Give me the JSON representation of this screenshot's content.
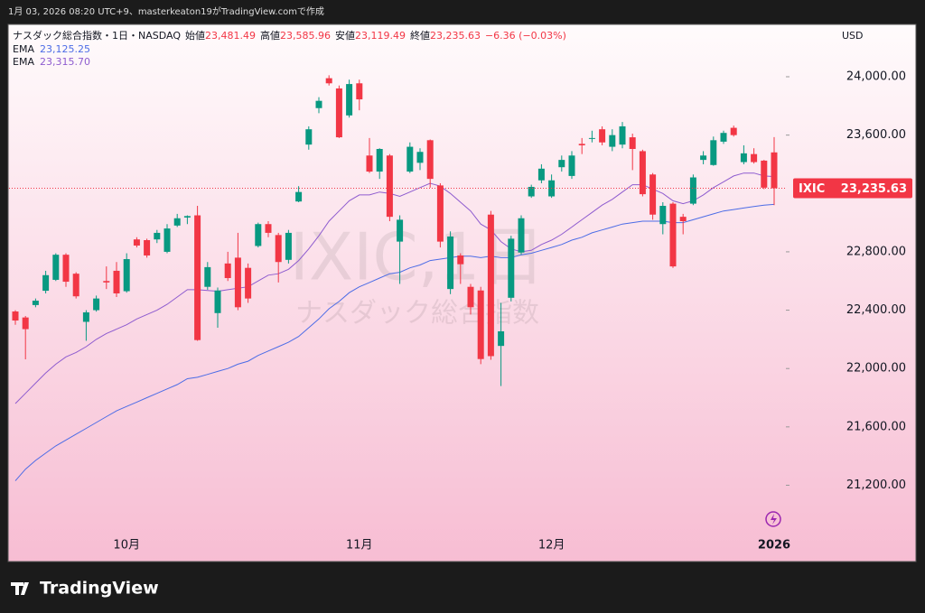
{
  "chart_data": {
    "type": "candlestick",
    "created": "1月 03, 2026 08:20 UTC+9、masterkeaton19がTradingView.comで作成",
    "title": "ナスダック総合指数・1日・NASDAQ",
    "ohlc_legend": [
      {
        "name": "始値",
        "label": "23,481.49"
      },
      {
        "name": "高値",
        "label": "23,585.96"
      },
      {
        "name": "安値",
        "label": "23,119.49"
      },
      {
        "name": "終値",
        "label": "23,235.63"
      }
    ],
    "change": "−6.36 (−0.03%)",
    "currency": "USD",
    "symbol": "IXIC",
    "price_label": "23,235.63",
    "watermark": [
      "IXIC,1日",
      "ナスダック総合指数"
    ],
    "brand": "TradingView",
    "up_color": "#089981",
    "down_color": "#f23645",
    "categories": [
      null,
      null,
      null,
      null,
      null,
      null,
      null,
      null,
      null,
      null,
      null,
      "10月",
      null,
      null,
      null,
      null,
      null,
      null,
      null,
      null,
      null,
      null,
      null,
      null,
      null,
      null,
      null,
      null,
      null,
      null,
      null,
      null,
      null,
      null,
      "11月",
      null,
      null,
      null,
      null,
      null,
      null,
      null,
      null,
      null,
      null,
      null,
      null,
      null,
      null,
      null,
      null,
      null,
      null,
      "12月",
      null,
      null,
      null,
      null,
      null,
      null,
      null,
      null,
      null,
      null,
      null,
      null,
      null,
      null,
      null,
      null,
      null,
      null,
      null,
      null,
      null,
      "2026"
    ],
    "open": [
      22391,
      22350,
      22435,
      22533,
      22608,
      22780,
      22650,
      22320,
      22400,
      22600,
      22670,
      22530,
      22885,
      22880,
      22885,
      22800,
      22980,
      23035,
      23050,
      22560,
      22380,
      22720,
      22760,
      22690,
      22840,
      22990,
      22915,
      22745,
      23145,
      23535,
      23785,
      23990,
      23920,
      23735,
      23955,
      23460,
      23350,
      23460,
      22870,
      23350,
      23410,
      23565,
      23255,
      22545,
      22775,
      22560,
      22535,
      23055,
      22155,
      22485,
      22795,
      23180,
      23290,
      23180,
      23380,
      23320,
      23540,
      23575,
      23640,
      23520,
      23535,
      23585,
      23490,
      23330,
      22990,
      23130,
      23040,
      23130,
      23430,
      23395,
      23555,
      23650,
      23415,
      23470,
      23425,
      23481.49
    ],
    "high": [
      22400,
      22360,
      22480,
      22670,
      22790,
      22790,
      22660,
      22400,
      22500,
      22700,
      22730,
      22790,
      22900,
      22890,
      22950,
      22990,
      23060,
      23050,
      23115,
      22730,
      22555,
      22800,
      22930,
      22720,
      23000,
      23010,
      22930,
      22950,
      23250,
      23660,
      23860,
      24010,
      23940,
      23980,
      23980,
      23580,
      23510,
      23470,
      23050,
      23550,
      23510,
      23570,
      23270,
      22940,
      22790,
      22580,
      22560,
      23080,
      22450,
      22910,
      23050,
      23260,
      23400,
      23330,
      23460,
      23490,
      23580,
      23630,
      23660,
      23640,
      23690,
      23610,
      23500,
      23340,
      23140,
      23140,
      23060,
      23330,
      23490,
      23590,
      23630,
      23665,
      23530,
      23510,
      23430,
      23585.96
    ],
    "low": [
      22300,
      22063,
      22420,
      22515,
      22600,
      22560,
      22480,
      22190,
      22390,
      22545,
      22490,
      22520,
      22830,
      22760,
      22860,
      22790,
      22970,
      22990,
      22190,
      22540,
      22280,
      22600,
      22400,
      22450,
      22830,
      22900,
      22590,
      22720,
      23140,
      23500,
      23750,
      23940,
      23580,
      23720,
      23770,
      23340,
      23300,
      23010,
      22580,
      23340,
      23360,
      23240,
      22830,
      22510,
      22580,
      22370,
      22030,
      22060,
      21880,
      22460,
      22780,
      23170,
      23270,
      23170,
      23350,
      23300,
      23470,
      23550,
      23530,
      23490,
      23510,
      23360,
      23180,
      23020,
      22920,
      22690,
      22920,
      23120,
      23400,
      23390,
      23540,
      23590,
      23400,
      23405,
      23230,
      23119.49
    ],
    "close": [
      22329,
      22270,
      22465,
      22640,
      22780,
      22595,
      22495,
      22385,
      22480,
      22590,
      22515,
      22750,
      22843,
      22775,
      22930,
      22960,
      23030,
      23045,
      22195,
      22695,
      22535,
      22620,
      22420,
      22480,
      22990,
      22930,
      22730,
      22930,
      23210,
      23640,
      23835,
      23955,
      23585,
      23950,
      23845,
      23350,
      23505,
      23040,
      23020,
      23520,
      23485,
      23300,
      22870,
      22905,
      22715,
      22420,
      22065,
      22085,
      22255,
      22890,
      23030,
      23245,
      23370,
      23290,
      23430,
      23460,
      23530,
      23580,
      23550,
      23600,
      23660,
      23505,
      23195,
      23055,
      23115,
      22700,
      23010,
      23310,
      23460,
      23565,
      23615,
      23600,
      23475,
      23415,
      23240,
      23235.63
    ],
    "series": [
      {
        "name": "EMA",
        "color": "#4c6ce6",
        "last_label": "23,125.25",
        "values": [
          21230,
          21310,
          21370,
          21420,
          21470,
          21510,
          21550,
          21590,
          21630,
          21670,
          21710,
          21740,
          21770,
          21800,
          21830,
          21860,
          21890,
          21930,
          21940,
          21960,
          21980,
          22000,
          22030,
          22050,
          22090,
          22120,
          22150,
          22180,
          22220,
          22280,
          22340,
          22410,
          22460,
          22520,
          22560,
          22590,
          22620,
          22650,
          22660,
          22690,
          22710,
          22740,
          22750,
          22760,
          22770,
          22770,
          22760,
          22770,
          22760,
          22760,
          22780,
          22790,
          22810,
          22830,
          22850,
          22880,
          22900,
          22930,
          22950,
          22970,
          22990,
          23000,
          23010,
          23010,
          23010,
          23000,
          23000,
          23020,
          23040,
          23060,
          23080,
          23090,
          23100,
          23110,
          23120,
          23125.25
        ]
      },
      {
        "name": "EMA",
        "color": "#8e5ccf",
        "last_label": "23,315.70",
        "values": [
          21760,
          21830,
          21900,
          21970,
          22030,
          22080,
          22110,
          22150,
          22200,
          22240,
          22270,
          22300,
          22340,
          22370,
          22400,
          22440,
          22490,
          22540,
          22540,
          22535,
          22530,
          22540,
          22550,
          22560,
          22600,
          22640,
          22650,
          22680,
          22740,
          22820,
          22910,
          23010,
          23080,
          23150,
          23190,
          23190,
          23210,
          23200,
          23180,
          23210,
          23240,
          23270,
          23250,
          23200,
          23140,
          23080,
          22990,
          22950,
          22870,
          22820,
          22800,
          22810,
          22850,
          22880,
          22920,
          22970,
          23020,
          23070,
          23120,
          23160,
          23210,
          23260,
          23260,
          23230,
          23200,
          23150,
          23130,
          23150,
          23190,
          23240,
          23280,
          23320,
          23340,
          23340,
          23320,
          23315.7
        ]
      }
    ],
    "ylim": [
      20875,
      24359
    ],
    "yticks": [
      {
        "value": 21200,
        "label": "21,200.00"
      },
      {
        "value": 21600,
        "label": "21,600.00"
      },
      {
        "value": 22000,
        "label": "22,000.00"
      },
      {
        "value": 22400,
        "label": "22,400.00"
      },
      {
        "value": 22800,
        "label": "22,800.00"
      },
      {
        "value": 23600,
        "label": "23,600.00"
      },
      {
        "value": 24000,
        "label": "24,000.00"
      }
    ],
    "grid": false
  }
}
